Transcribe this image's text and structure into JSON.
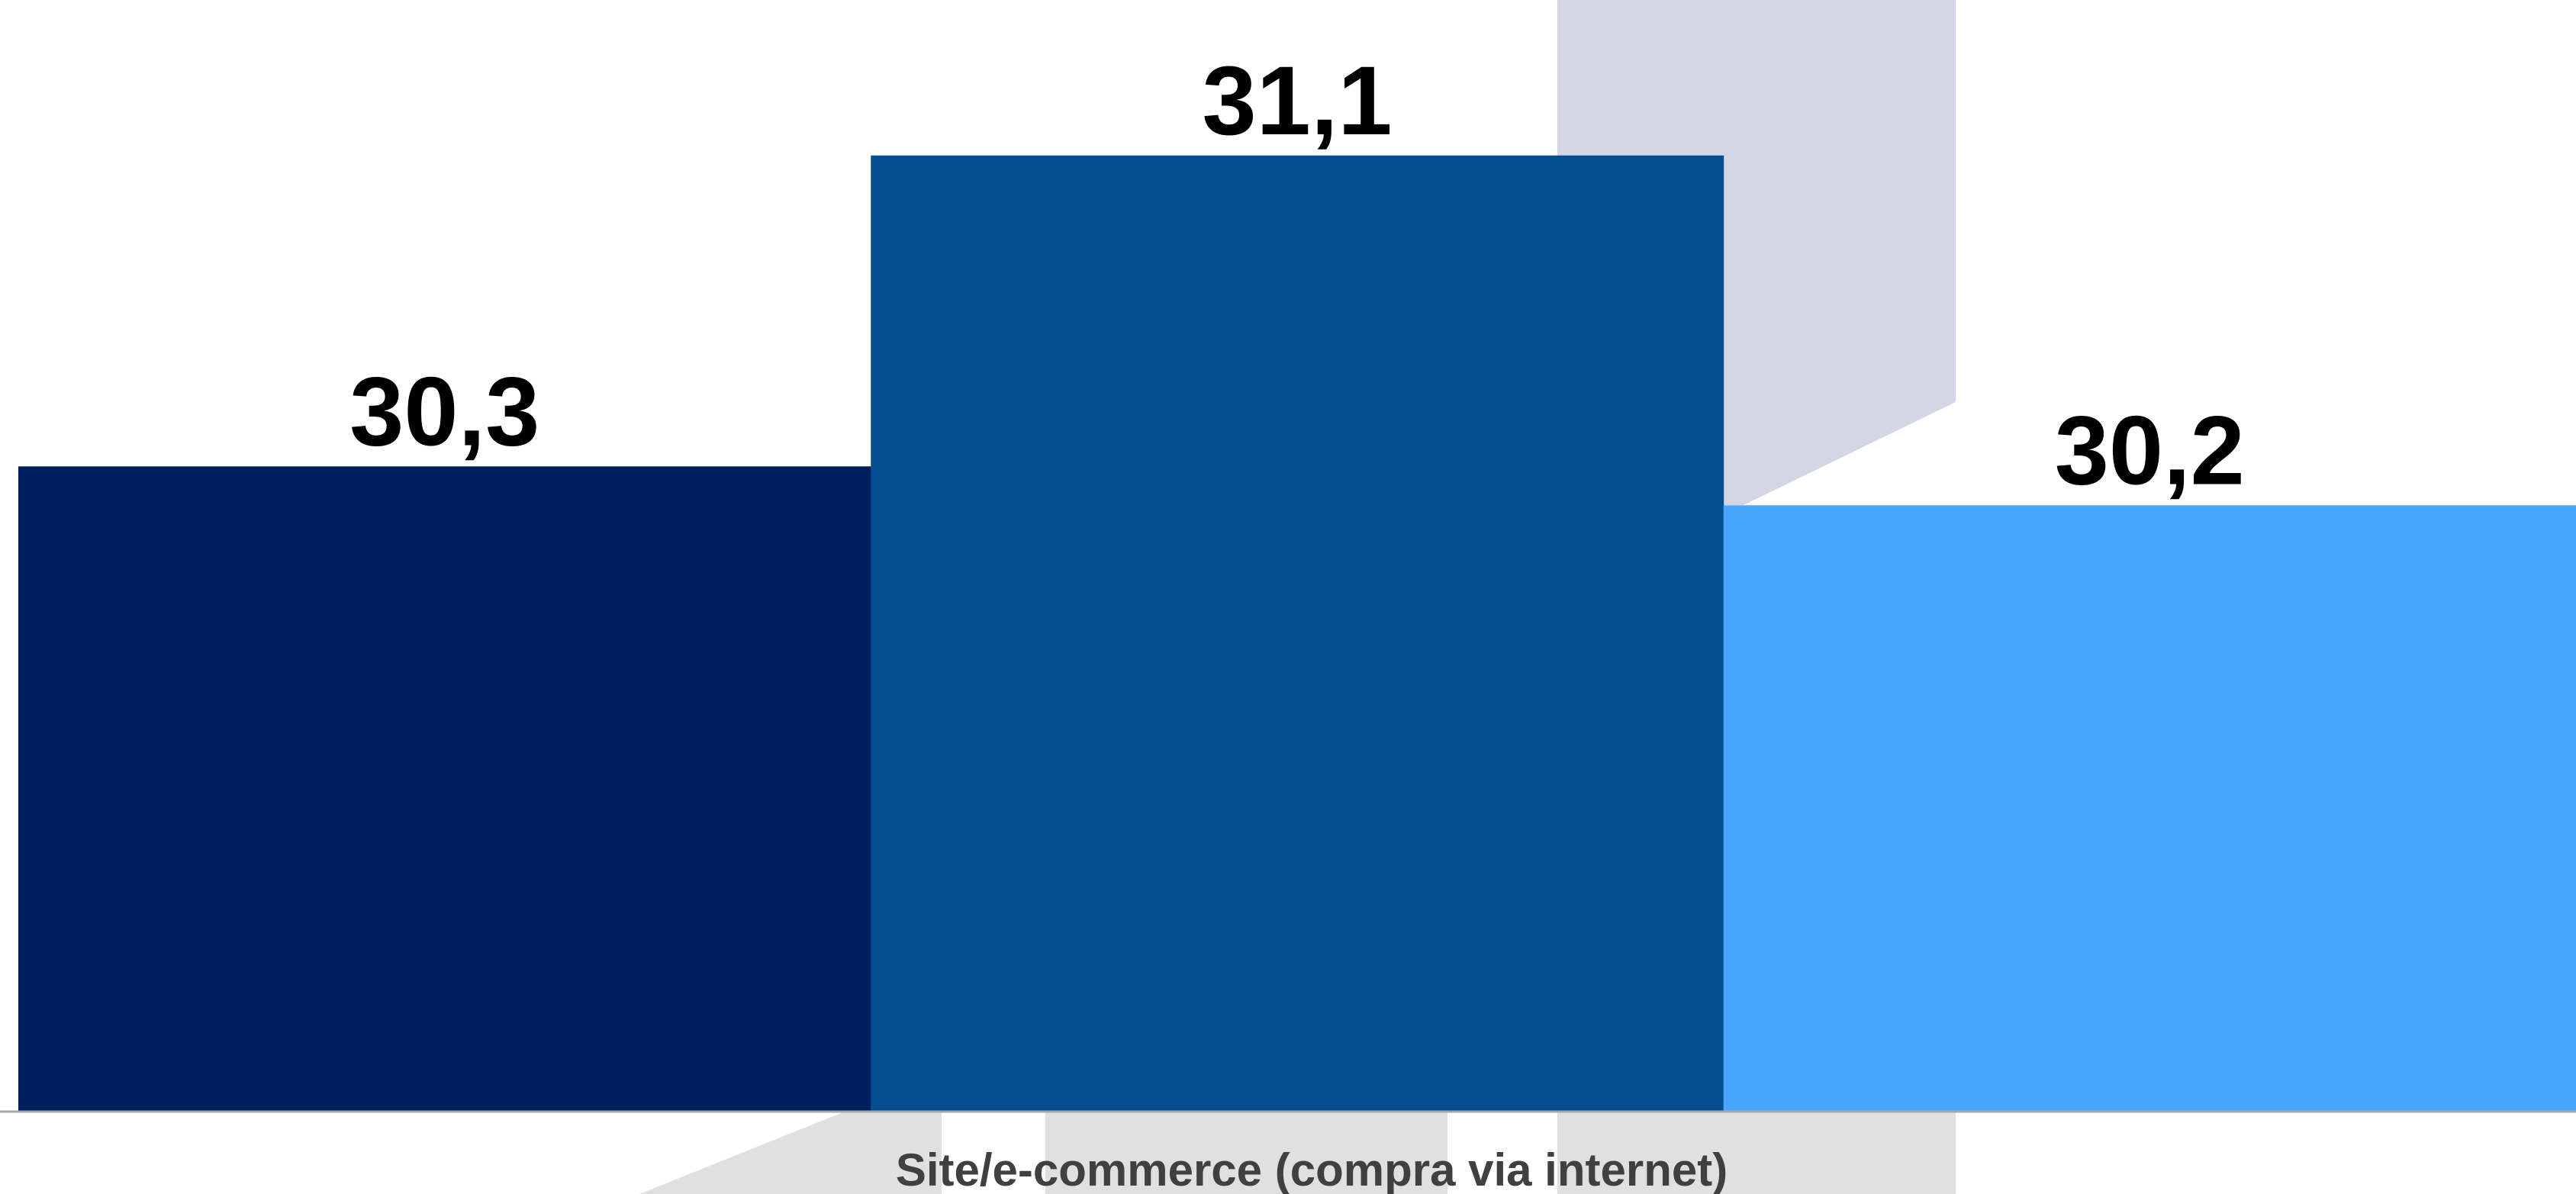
{
  "chart_data": {
    "type": "bar",
    "categories": [
      "Site/e-commerce (compra via internet)"
    ],
    "series": [
      {
        "values": [
          30.3
        ],
        "color": "#001f5f",
        "label": "30,3"
      },
      {
        "values": [
          31.1
        ],
        "color": "#024e91",
        "label": "31,1"
      },
      {
        "values": [
          30.2
        ],
        "color": "#48a6fc",
        "label": "30,2"
      }
    ],
    "ylim": [
      28.64,
      31.5
    ],
    "grid": false,
    "legend": "none",
    "decor_colors": {
      "lavender": "#d4d6e6",
      "gray": "#e0e0e0"
    }
  }
}
